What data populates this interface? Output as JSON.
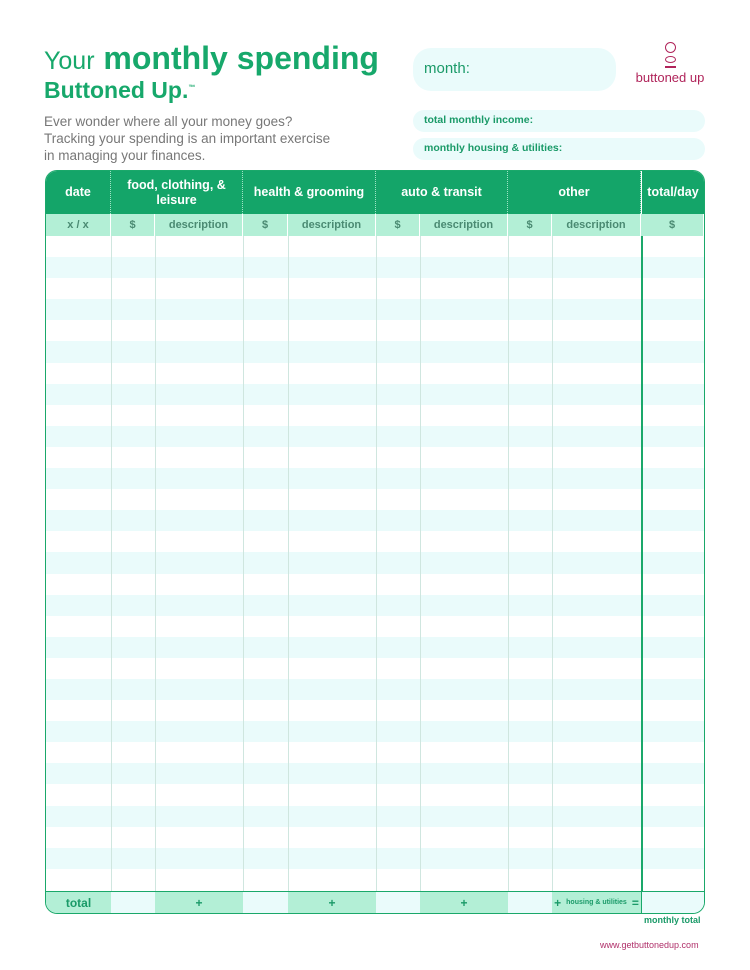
{
  "title": {
    "prefix": "Your",
    "main": "monthly spending",
    "brand": "Buttoned Up.",
    "tm": "™"
  },
  "intro": "Ever wonder where all your money goes? Tracking your spending is an important exercise in managing your finances.",
  "fields": {
    "month": "month:",
    "income": "total monthly income:",
    "housing": "monthly housing & utilities:"
  },
  "logo": {
    "text": "buttoned up"
  },
  "table": {
    "headers": [
      "date",
      "food, clothing, & leisure",
      "health & grooming",
      "auto & transit",
      "other",
      "total/day"
    ],
    "subheaders": [
      "x / x",
      "$",
      "description",
      "$",
      "description",
      "$",
      "description",
      "$",
      "description",
      "$"
    ],
    "total_label": "total",
    "plus": "+",
    "housing_label": "housing & utilities",
    "equals": "="
  },
  "monthly_total": "monthly total",
  "url": "www.getbuttonedup.com",
  "colors": {
    "green": "#14a569",
    "mint": "#b3efd6",
    "pale": "#eafbfb",
    "brand": "#b0245a"
  }
}
